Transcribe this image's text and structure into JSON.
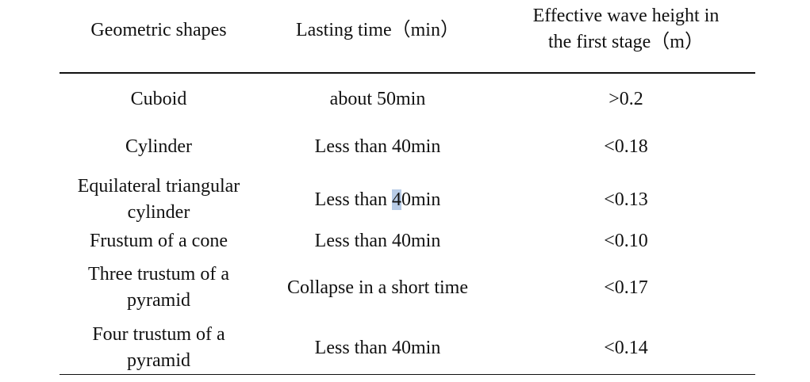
{
  "table": {
    "headers": [
      {
        "lines": [
          "Geometric shapes"
        ]
      },
      {
        "lines": [
          "Lasting time（min）"
        ]
      },
      {
        "lines": [
          "Effective wave height in",
          "the first stage（m）"
        ]
      }
    ],
    "rows": [
      {
        "shape": [
          "Cuboid"
        ],
        "time": "about 50min",
        "height": ">0.2"
      },
      {
        "shape": [
          "Cylinder"
        ],
        "time": "Less than 40min",
        "height": "<0.18"
      },
      {
        "shape": [
          "Equilateral triangular",
          "cylinder"
        ],
        "time_pre": "Less than ",
        "time_hl": "4",
        "time_post": "0min",
        "height": "<0.13"
      },
      {
        "shape": [
          "Frustum of a cone"
        ],
        "time": "Less than 40min",
        "height": "<0.10"
      },
      {
        "shape": [
          "Three trustum of a",
          "pyramid"
        ],
        "time": "Collapse in a short time",
        "height": "<0.17"
      },
      {
        "shape": [
          "Four trustum of a",
          "pyramid"
        ],
        "time": "Less than 40min",
        "height": "<0.14"
      }
    ]
  }
}
